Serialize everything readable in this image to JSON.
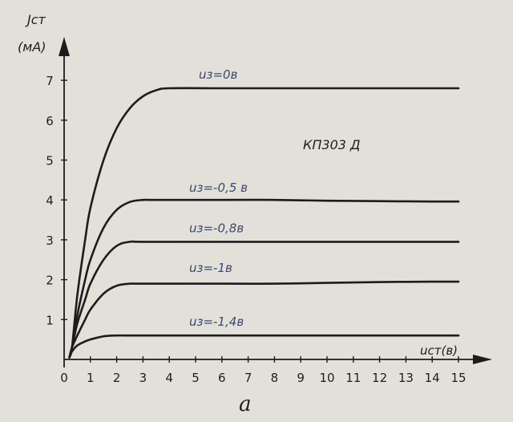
{
  "chart_data": {
    "type": "line",
    "title": "",
    "ylabel": [
      "Jст",
      "(мА)"
    ],
    "xlabel": "uст(в)",
    "device_label": "КП303 Д",
    "caption": "а",
    "xlim": [
      0,
      15
    ],
    "ylim": [
      0,
      7.5
    ],
    "xticks": [
      0,
      1,
      2,
      3,
      4,
      5,
      6,
      7,
      8,
      9,
      10,
      11,
      12,
      13,
      14,
      15
    ],
    "yticks": [
      1,
      2,
      3,
      4,
      5,
      6,
      7
    ],
    "grid": false,
    "series": [
      {
        "name": "uз=0в",
        "x": [
          0.3,
          0.5,
          0.8,
          1.0,
          1.5,
          2.0,
          2.5,
          3.0,
          3.5,
          4.0,
          6,
          8,
          10,
          12,
          14,
          15
        ],
        "y": [
          0.3,
          1.6,
          3.0,
          3.8,
          5.0,
          5.8,
          6.3,
          6.6,
          6.75,
          6.8,
          6.8,
          6.8,
          6.8,
          6.8,
          6.8,
          6.8
        ]
      },
      {
        "name": "uз=-0,5 в",
        "x": [
          0.3,
          0.5,
          0.8,
          1.0,
          1.5,
          2.0,
          2.5,
          3.0,
          3.5,
          6,
          8,
          10,
          12,
          14,
          15
        ],
        "y": [
          0.3,
          1.1,
          2.0,
          2.5,
          3.3,
          3.75,
          3.95,
          4.0,
          4.0,
          4.0,
          4.0,
          3.98,
          3.97,
          3.96,
          3.96
        ]
      },
      {
        "name": "uз=-0,8в",
        "x": [
          0.3,
          0.5,
          0.8,
          1.0,
          1.5,
          2.0,
          2.5,
          3.0,
          6,
          8,
          10,
          12,
          14,
          15
        ],
        "y": [
          0.3,
          0.9,
          1.5,
          1.9,
          2.5,
          2.85,
          2.95,
          2.95,
          2.95,
          2.95,
          2.95,
          2.95,
          2.95,
          2.95
        ]
      },
      {
        "name": "uз=-1в",
        "x": [
          0.3,
          0.5,
          0.8,
          1.0,
          1.5,
          2.0,
          2.5,
          3.0,
          6,
          8,
          10,
          12,
          14,
          15
        ],
        "y": [
          0.3,
          0.6,
          1.0,
          1.25,
          1.65,
          1.85,
          1.9,
          1.9,
          1.9,
          1.9,
          1.92,
          1.94,
          1.95,
          1.95
        ]
      },
      {
        "name": "uз=-1,4в",
        "x": [
          0.3,
          0.5,
          0.8,
          1.0,
          1.5,
          2.0,
          2.5,
          4,
          6,
          8,
          10,
          12,
          14,
          15
        ],
        "y": [
          0.2,
          0.35,
          0.45,
          0.5,
          0.58,
          0.6,
          0.6,
          0.6,
          0.6,
          0.6,
          0.6,
          0.6,
          0.6,
          0.6
        ]
      }
    ]
  }
}
